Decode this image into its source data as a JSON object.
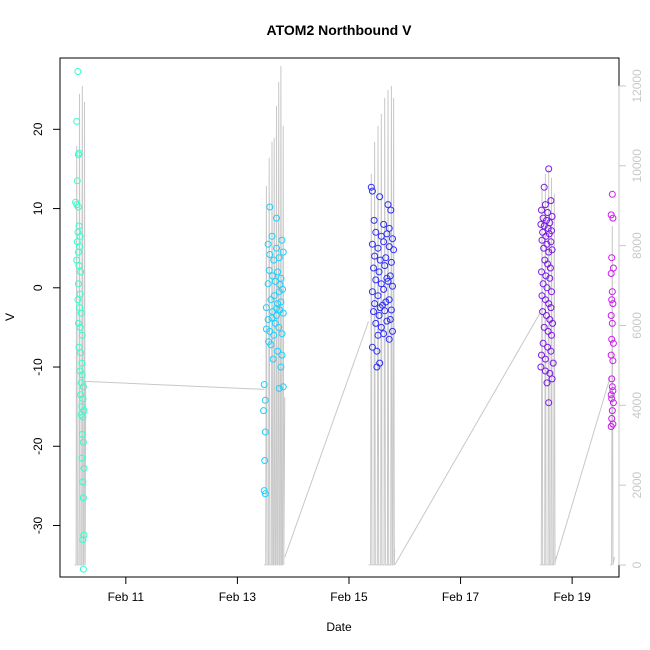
{
  "chart_data": {
    "type": "scatter",
    "title": "ATOM2 Northbound V",
    "xlabel": "Date",
    "ylabel": "V",
    "x_unit": "days since Feb 10 00:00",
    "xlim": [
      -0.18,
      9.84
    ],
    "ylim": [
      -36.5,
      29.0
    ],
    "y2lim": [
      -300,
      12700
    ],
    "x_ticks": [
      {
        "value": 1,
        "label": "Feb 11"
      },
      {
        "value": 3,
        "label": "Feb 13"
      },
      {
        "value": 5,
        "label": "Feb 15"
      },
      {
        "value": 7,
        "label": "Feb 17"
      },
      {
        "value": 9,
        "label": "Feb 19"
      }
    ],
    "y_ticks": [
      {
        "value": -30,
        "label": "-30"
      },
      {
        "value": -20,
        "label": "-20"
      },
      {
        "value": -10,
        "label": "-10"
      },
      {
        "value": 0,
        "label": "0"
      },
      {
        "value": 10,
        "label": "10"
      },
      {
        "value": 20,
        "label": "20"
      }
    ],
    "y2_ticks": [
      {
        "value": 0,
        "label": "0"
      },
      {
        "value": 2000,
        "label": "2000"
      },
      {
        "value": 4000,
        "label": "4000"
      },
      {
        "value": 6000,
        "label": "6000"
      },
      {
        "value": 8000,
        "label": "8000"
      },
      {
        "value": 10000,
        "label": "10000"
      },
      {
        "value": 12000,
        "label": "12000"
      }
    ],
    "grid": false,
    "legend": "none",
    "point_style": "open-circle",
    "line_color": "#c8c8c8",
    "series": [
      {
        "color": "#33ffcc",
        "points": [
          [
            0.14,
            27.3
          ],
          [
            0.12,
            21.0
          ],
          [
            0.16,
            17.0
          ],
          [
            0.15,
            16.8
          ],
          [
            0.13,
            13.5
          ],
          [
            0.1,
            10.8
          ],
          [
            0.15,
            10.2
          ],
          [
            0.12,
            10.5
          ],
          [
            0.16,
            7.8
          ],
          [
            0.14,
            7.0
          ],
          [
            0.18,
            6.5
          ],
          [
            0.13,
            5.8
          ],
          [
            0.17,
            5.2
          ],
          [
            0.15,
            4.5
          ],
          [
            0.12,
            3.5
          ],
          [
            0.16,
            2.8
          ],
          [
            0.19,
            2.0
          ],
          [
            0.15,
            0.5
          ],
          [
            0.18,
            -0.8
          ],
          [
            0.14,
            -1.5
          ],
          [
            0.17,
            -2.5
          ],
          [
            0.2,
            -3.2
          ],
          [
            0.15,
            -4.5
          ],
          [
            0.18,
            -5.0
          ],
          [
            0.22,
            -6.0
          ],
          [
            0.16,
            -7.5
          ],
          [
            0.19,
            -8.2
          ],
          [
            0.21,
            -9.5
          ],
          [
            0.18,
            -10.5
          ],
          [
            0.22,
            -11.0
          ],
          [
            0.2,
            -12.0
          ],
          [
            0.24,
            -12.5
          ],
          [
            0.19,
            -13.5
          ],
          [
            0.23,
            -14.0
          ],
          [
            0.21,
            -15.0
          ],
          [
            0.25,
            -15.5
          ],
          [
            0.2,
            -16.0
          ],
          [
            0.23,
            -16.3
          ],
          [
            0.22,
            -18.5
          ],
          [
            0.24,
            -19.5
          ],
          [
            0.21,
            -21.5
          ],
          [
            0.25,
            -22.8
          ],
          [
            0.23,
            -24.5
          ],
          [
            0.24,
            -26.5
          ],
          [
            0.25,
            -31.2
          ],
          [
            0.23,
            -31.8
          ],
          [
            0.24,
            -35.5
          ]
        ]
      },
      {
        "color": "#1ad1ff",
        "points": [
          [
            3.48,
            -12.2
          ],
          [
            3.5,
            -14.2
          ],
          [
            3.47,
            -15.5
          ],
          [
            3.5,
            -18.2
          ],
          [
            3.49,
            -21.8
          ],
          [
            3.48,
            -25.6
          ],
          [
            3.5,
            -26.0
          ],
          [
            3.58,
            10.2
          ],
          [
            3.7,
            8.8
          ],
          [
            3.62,
            6.5
          ],
          [
            3.55,
            5.5
          ],
          [
            3.7,
            5.0
          ],
          [
            3.8,
            6.0
          ],
          [
            3.58,
            4.2
          ],
          [
            3.65,
            3.5
          ],
          [
            3.75,
            3.8
          ],
          [
            3.82,
            4.5
          ],
          [
            3.57,
            2.2
          ],
          [
            3.63,
            1.5
          ],
          [
            3.72,
            2.0
          ],
          [
            3.78,
            1.2
          ],
          [
            3.55,
            0.5
          ],
          [
            3.68,
            0.8
          ],
          [
            3.75,
            -0.5
          ],
          [
            3.81,
            -0.2
          ],
          [
            3.6,
            -1.5
          ],
          [
            3.66,
            -1.0
          ],
          [
            3.72,
            -2.0
          ],
          [
            3.78,
            -1.8
          ],
          [
            3.52,
            -2.5
          ],
          [
            3.63,
            -3.0
          ],
          [
            3.7,
            -3.5
          ],
          [
            3.76,
            -2.8
          ],
          [
            3.82,
            -3.2
          ],
          [
            3.55,
            -4.0
          ],
          [
            3.68,
            -4.5
          ],
          [
            3.74,
            -5.0
          ],
          [
            3.58,
            -5.5
          ],
          [
            3.65,
            -6.0
          ],
          [
            3.8,
            -5.8
          ],
          [
            3.6,
            -7.2
          ],
          [
            3.72,
            -8.0
          ],
          [
            3.8,
            -8.5
          ],
          [
            3.64,
            -9.0
          ],
          [
            3.78,
            -10.0
          ],
          [
            3.82,
            -12.5
          ],
          [
            3.75,
            -12.7
          ],
          [
            3.52,
            -5.2
          ],
          [
            3.56,
            -6.8
          ],
          [
            3.7,
            -2.6
          ],
          [
            3.76,
            0.4
          ],
          [
            3.62,
            -3.8
          ]
        ]
      },
      {
        "color": "#2e2efa",
        "points": [
          [
            5.4,
            12.7
          ],
          [
            5.42,
            12.2
          ],
          [
            5.55,
            11.5
          ],
          [
            5.7,
            10.5
          ],
          [
            5.75,
            9.8
          ],
          [
            5.45,
            8.5
          ],
          [
            5.62,
            8.0
          ],
          [
            5.72,
            7.5
          ],
          [
            5.48,
            7.0
          ],
          [
            5.58,
            6.5
          ],
          [
            5.68,
            6.8
          ],
          [
            5.78,
            6.2
          ],
          [
            5.42,
            5.5
          ],
          [
            5.52,
            5.0
          ],
          [
            5.62,
            5.8
          ],
          [
            5.72,
            5.2
          ],
          [
            5.8,
            4.8
          ],
          [
            5.46,
            4.0
          ],
          [
            5.56,
            3.5
          ],
          [
            5.66,
            3.8
          ],
          [
            5.76,
            3.2
          ],
          [
            5.44,
            2.5
          ],
          [
            5.54,
            2.0
          ],
          [
            5.64,
            2.8
          ],
          [
            5.74,
            1.5
          ],
          [
            5.48,
            1.0
          ],
          [
            5.58,
            0.5
          ],
          [
            5.68,
            1.2
          ],
          [
            5.78,
            0.2
          ],
          [
            5.42,
            -0.5
          ],
          [
            5.52,
            -1.0
          ],
          [
            5.62,
            -0.2
          ],
          [
            5.72,
            -1.5
          ],
          [
            5.46,
            -2.0
          ],
          [
            5.56,
            -2.5
          ],
          [
            5.66,
            -1.8
          ],
          [
            5.76,
            -2.8
          ],
          [
            5.44,
            -3.0
          ],
          [
            5.54,
            -3.5
          ],
          [
            5.64,
            -2.9
          ],
          [
            5.74,
            -4.0
          ],
          [
            5.48,
            -4.5
          ],
          [
            5.58,
            -5.0
          ],
          [
            5.68,
            -4.2
          ],
          [
            5.78,
            -5.5
          ],
          [
            5.52,
            -6.0
          ],
          [
            5.62,
            -5.8
          ],
          [
            5.72,
            -6.5
          ],
          [
            5.42,
            -7.5
          ],
          [
            5.5,
            -8.0
          ],
          [
            5.55,
            -9.5
          ],
          [
            5.5,
            -10.0
          ],
          [
            5.6,
            -2.2
          ],
          [
            5.7,
            0.8
          ]
        ]
      },
      {
        "color": "#7a1ae6",
        "points": [
          [
            8.58,
            15.0
          ],
          [
            8.5,
            12.7
          ],
          [
            8.62,
            11.0
          ],
          [
            8.52,
            10.5
          ],
          [
            8.45,
            9.8
          ],
          [
            8.56,
            9.5
          ],
          [
            8.64,
            9.0
          ],
          [
            8.48,
            8.8
          ],
          [
            8.54,
            8.5
          ],
          [
            8.6,
            8.2
          ],
          [
            8.44,
            8.0
          ],
          [
            8.5,
            7.8
          ],
          [
            8.57,
            7.5
          ],
          [
            8.63,
            7.2
          ],
          [
            8.47,
            7.0
          ],
          [
            8.53,
            6.5
          ],
          [
            8.59,
            6.8
          ],
          [
            8.46,
            6.0
          ],
          [
            8.55,
            5.5
          ],
          [
            8.62,
            5.8
          ],
          [
            8.49,
            5.0
          ],
          [
            8.58,
            4.5
          ],
          [
            8.64,
            4.8
          ],
          [
            8.51,
            3.5
          ],
          [
            8.56,
            3.0
          ],
          [
            8.61,
            2.5
          ],
          [
            8.45,
            2.0
          ],
          [
            8.53,
            1.5
          ],
          [
            8.6,
            1.2
          ],
          [
            8.48,
            0.5
          ],
          [
            8.55,
            0.0
          ],
          [
            8.63,
            -0.5
          ],
          [
            8.46,
            -1.0
          ],
          [
            8.52,
            -1.5
          ],
          [
            8.58,
            -2.0
          ],
          [
            8.62,
            -2.5
          ],
          [
            8.47,
            -3.0
          ],
          [
            8.54,
            -3.5
          ],
          [
            8.6,
            -4.0
          ],
          [
            8.65,
            -4.5
          ],
          [
            8.5,
            -5.0
          ],
          [
            8.57,
            -5.5
          ],
          [
            8.63,
            -6.0
          ],
          [
            8.48,
            -7.0
          ],
          [
            8.56,
            -7.5
          ],
          [
            8.62,
            -8.0
          ],
          [
            8.45,
            -8.5
          ],
          [
            8.52,
            -9.0
          ],
          [
            8.66,
            -9.5
          ],
          [
            8.44,
            -10.0
          ],
          [
            8.6,
            -10.8
          ],
          [
            8.64,
            -11.5
          ],
          [
            8.55,
            -12.0
          ],
          [
            8.58,
            -14.5
          ],
          [
            8.52,
            -10.5
          ]
        ]
      },
      {
        "color": "#cc1aee",
        "points": [
          [
            9.72,
            11.8
          ],
          [
            9.7,
            9.2
          ],
          [
            9.73,
            8.8
          ],
          [
            9.71,
            3.8
          ],
          [
            9.74,
            2.5
          ],
          [
            9.7,
            1.8
          ],
          [
            9.72,
            -0.5
          ],
          [
            9.71,
            -1.5
          ],
          [
            9.73,
            -2.0
          ],
          [
            9.7,
            -3.5
          ],
          [
            9.72,
            -4.5
          ],
          [
            9.71,
            -6.5
          ],
          [
            9.74,
            -7.0
          ],
          [
            9.7,
            -8.5
          ],
          [
            9.73,
            -9.2
          ],
          [
            9.71,
            -11.5
          ],
          [
            9.72,
            -12.5
          ],
          [
            9.73,
            -13.0
          ],
          [
            9.7,
            -13.5
          ],
          [
            9.71,
            -14.0
          ],
          [
            9.74,
            -14.5
          ],
          [
            9.72,
            -15.5
          ],
          [
            9.71,
            -16.5
          ],
          [
            9.73,
            -17.2
          ],
          [
            9.7,
            -17.5
          ]
        ]
      }
    ],
    "secondary_series": {
      "name": "",
      "note": "grey line on right axis; spikes from baseline",
      "segments": [
        {
          "x_start": 0.08,
          "x_end": 0.28,
          "base": 3,
          "peaks": [
            [
              0.12,
              10500
            ],
            [
              0.17,
              11800
            ],
            [
              0.22,
              12000
            ],
            [
              0.26,
              11600
            ]
          ],
          "end": [
            0.28,
            4600
          ]
        },
        {
          "x_start": 3.48,
          "x_end": 3.85,
          "base": 3,
          "peaks": [
            [
              3.52,
              9500
            ],
            [
              3.57,
              10200
            ],
            [
              3.62,
              10600
            ],
            [
              3.66,
              10700
            ],
            [
              3.7,
              11500
            ],
            [
              3.74,
              12100
            ],
            [
              3.78,
              12500
            ],
            [
              3.82,
              11000
            ]
          ],
          "end": [
            3.85,
            4200
          ]
        },
        {
          "x_start": 5.35,
          "x_end": 5.82,
          "base": 3,
          "peaks": [
            [
              5.4,
              9800
            ],
            [
              5.46,
              10600
            ],
            [
              5.52,
              11000
            ],
            [
              5.58,
              11300
            ],
            [
              5.64,
              11700
            ],
            [
              5.7,
              11900
            ],
            [
              5.76,
              12000
            ],
            [
              5.8,
              11700
            ]
          ],
          "end": [
            5.82,
            400
          ]
        },
        {
          "x_start": 8.42,
          "x_end": 8.7,
          "base": 3,
          "peaks": [
            [
              8.46,
              9400
            ],
            [
              8.52,
              9800
            ],
            [
              8.58,
              9900
            ],
            [
              8.63,
              9700
            ],
            [
              8.68,
              9300
            ]
          ],
          "end": [
            8.7,
            200
          ]
        },
        {
          "x_start": 9.68,
          "x_end": 9.76,
          "base": 3,
          "peaks": [
            [
              9.72,
              8500
            ]
          ],
          "end": [
            9.76,
            200
          ]
        }
      ],
      "connectors": [
        [
          [
            0.28,
            4600
          ],
          [
            3.48,
            4400
          ]
        ],
        [
          [
            3.85,
            200
          ],
          [
            5.35,
            6100
          ]
        ],
        [
          [
            5.82,
            0
          ],
          [
            8.42,
            6300
          ]
        ],
        [
          [
            8.7,
            100
          ],
          [
            9.68,
            4700
          ]
        ]
      ]
    }
  }
}
